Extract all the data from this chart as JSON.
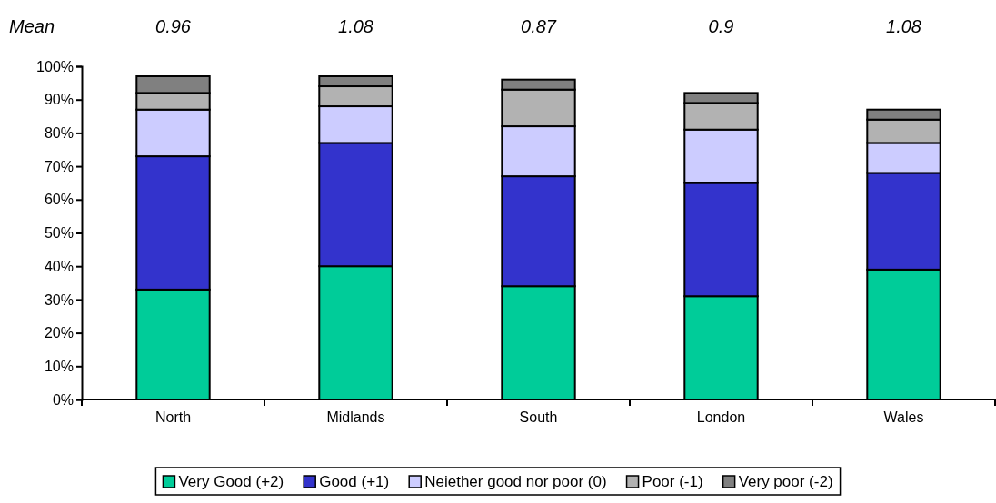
{
  "chart_data": {
    "type": "bar",
    "stacked": true,
    "categories": [
      "North",
      "Midlands",
      "South",
      "London",
      "Wales"
    ],
    "series": [
      {
        "name": "Very Good (+2)",
        "color": "#00cc99",
        "values": [
          33,
          40,
          34,
          31,
          39
        ]
      },
      {
        "name": "Good (+1)",
        "color": "#3333cc",
        "values": [
          40,
          37,
          33,
          34,
          29
        ]
      },
      {
        "name": "Neiether good nor poor (0)",
        "color": "#ccccff",
        "values": [
          14,
          11,
          15,
          16,
          9
        ]
      },
      {
        "name": "Poor (-1)",
        "color": "#b2b2b2",
        "values": [
          5,
          6,
          11,
          8,
          7
        ]
      },
      {
        "name": "Very poor (-2)",
        "color": "#808080",
        "values": [
          5,
          3,
          3,
          3,
          3
        ]
      }
    ],
    "ylim": [
      0,
      100
    ],
    "yticks": [
      {
        "value": 0,
        "label": "0%"
      },
      {
        "value": 10,
        "label": "10%"
      },
      {
        "value": 20,
        "label": "20%"
      },
      {
        "value": 30,
        "label": "30%"
      },
      {
        "value": 40,
        "label": "40%"
      },
      {
        "value": 50,
        "label": "50%"
      },
      {
        "value": 60,
        "label": "60%"
      },
      {
        "value": 70,
        "label": "70%"
      },
      {
        "value": 80,
        "label": "80%"
      },
      {
        "value": 90,
        "label": "90%"
      },
      {
        "value": 100,
        "label": "100%"
      }
    ],
    "annotations": [
      "Mean",
      "0.96",
      "1.08",
      "0.87",
      "0.9",
      "1.08"
    ],
    "legend": "bottom",
    "grid": false
  }
}
